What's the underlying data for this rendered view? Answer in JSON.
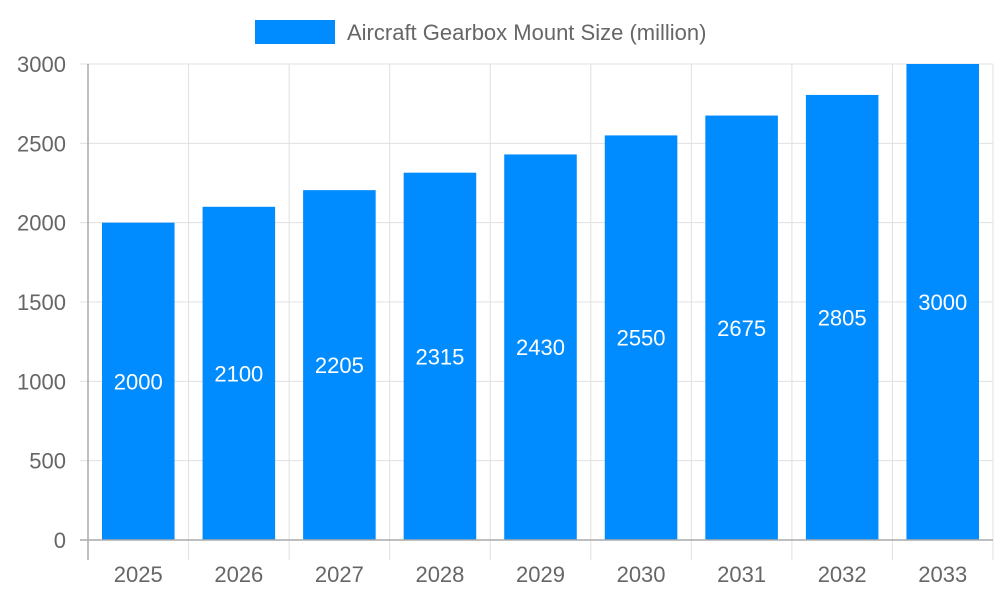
{
  "chart_data": {
    "type": "bar",
    "title": "",
    "xlabel": "",
    "ylabel": "",
    "categories": [
      "2025",
      "2026",
      "2027",
      "2028",
      "2029",
      "2030",
      "2031",
      "2032",
      "2033"
    ],
    "series": [
      {
        "name": "Aircraft Gearbox Mount Size (million)",
        "values": [
          2000,
          2100,
          2205,
          2315,
          2430,
          2550,
          2675,
          2805,
          3000
        ],
        "color": "#008cff"
      }
    ],
    "ylim": [
      0,
      3000
    ],
    "yticks": [
      0,
      500,
      1000,
      1500,
      2000,
      2500,
      3000
    ],
    "grid": true,
    "legend_position": "top",
    "data_labels": true
  }
}
